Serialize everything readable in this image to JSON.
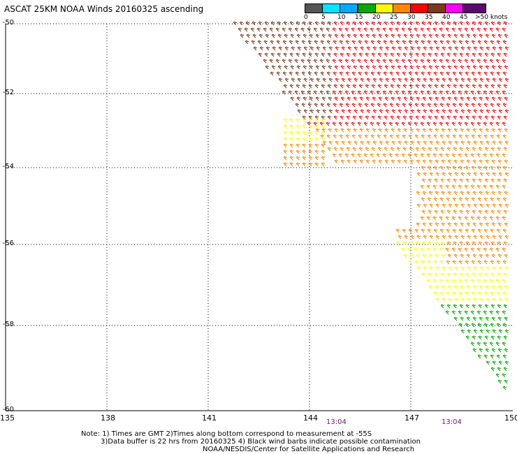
{
  "title": "ASCAT 25KM NOAA Winds 20160325 ascending",
  "legend": {
    "colors": [
      "#555555",
      "#00e5ff",
      "#00aaff",
      "#0033cc",
      "#00aa00",
      "#ffff00",
      "#ff8800",
      "#ff0000",
      "#d62030",
      "#7a3a1a",
      "#a0522d",
      "#ff00ff",
      "#a000c0",
      "#5a0a6a"
    ],
    "labels": [
      "0",
      "5",
      "10",
      "15",
      "20",
      "25",
      "30",
      "35",
      "40",
      "45",
      ">50 knots"
    ]
  },
  "lat_labels": [
    "-50",
    "-52",
    "-54",
    "-56",
    "-58",
    "-60"
  ],
  "lon_labels": [
    "135",
    "138",
    "141",
    "144",
    "147",
    "150"
  ],
  "times": [
    "13:04",
    "13:04"
  ],
  "notes": {
    "line1": "Note: 1) Times are GMT 2)Times along bottom correspond to measurement at -55S",
    "line2": "3)Data buffer is 22 hrs from 20160325 4) Black wind barbs indicate possible contamination",
    "line3": "NOAA/NESDIS/Center for Satellite Applications and Research"
  }
}
